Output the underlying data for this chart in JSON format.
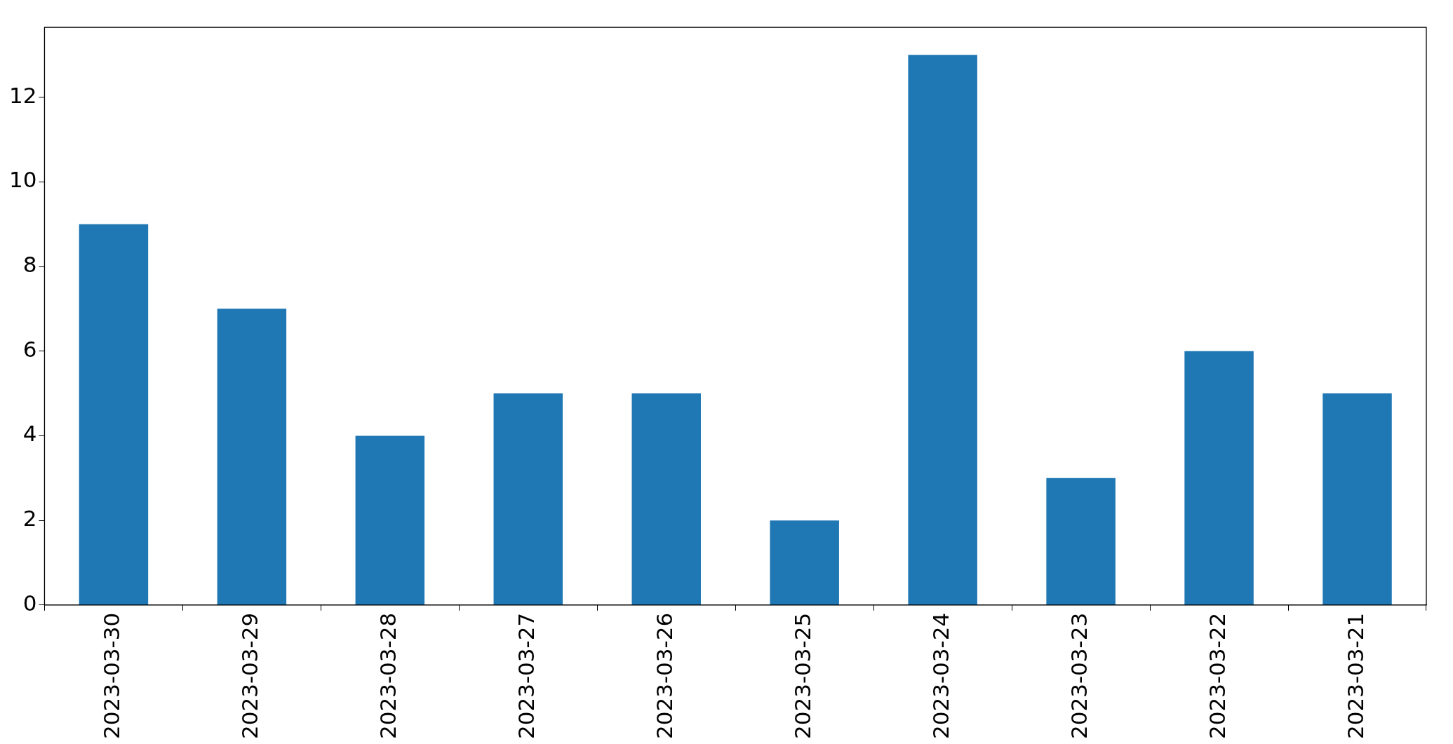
{
  "chart_data": {
    "type": "bar",
    "categories": [
      "2023-03-30",
      "2023-03-29",
      "2023-03-28",
      "2023-03-27",
      "2023-03-26",
      "2023-03-25",
      "2023-03-24",
      "2023-03-23",
      "2023-03-22",
      "2023-03-21"
    ],
    "values": [
      9,
      7,
      4,
      5,
      5,
      2,
      13,
      3,
      6,
      5
    ],
    "color": "#1f77b4",
    "ylim": [
      0,
      13.65
    ],
    "yticks": [
      0,
      2,
      4,
      6,
      8,
      10,
      12
    ]
  }
}
